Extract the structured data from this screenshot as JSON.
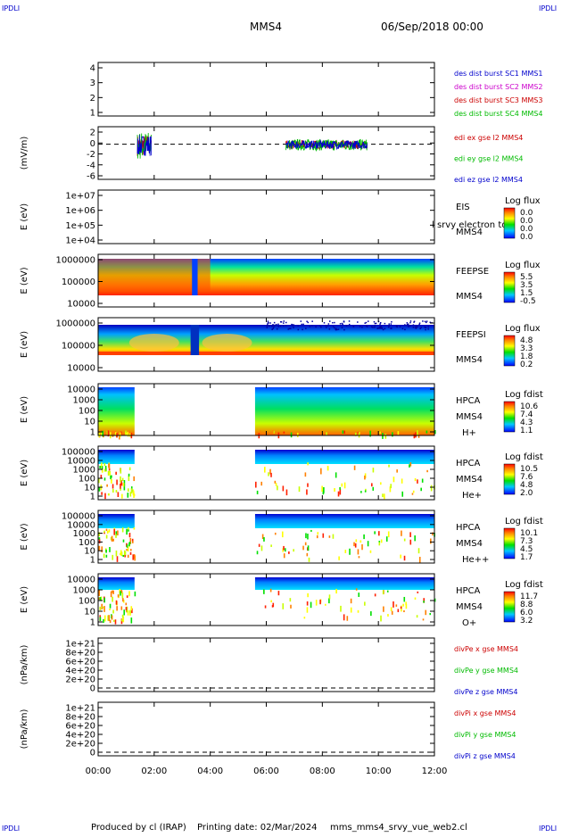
{
  "header": {
    "corner_tl": "IPDLI",
    "corner_tr": "IPDLI",
    "corner_bl": "IPDLI",
    "corner_br": "IPDLI",
    "spacecraft": "MMS4",
    "date_time": "06/Sep/2018 00:00"
  },
  "footer": {
    "produced_by": "Produced by cl (IRAP)",
    "printing_date": "Printing date: 02/Mar/2024",
    "script_name": "mms_mms4_srvy_vue_web2.cl"
  },
  "colors": {
    "mms1": "#0000cc",
    "mms2": "#cc00cc",
    "mms3": "#cc0000",
    "mms4": "#00bb00",
    "x": "#cc0000",
    "y": "#00bb00",
    "z": "#0000cc"
  },
  "chart_data": [
    {
      "type": "line",
      "panel": "des-dist-burst",
      "ylabel": "",
      "ylim": [
        0.5,
        4.5
      ],
      "yticks": [
        "4",
        "3",
        "2",
        "1"
      ],
      "legend": [
        {
          "label": "des dist burst SC1 MMS1",
          "color": "#0000cc"
        },
        {
          "label": "des dist burst SC2 MMS2",
          "color": "#cc00cc"
        },
        {
          "label": "des dist burst SC3 MMS3",
          "color": "#cc0000"
        },
        {
          "label": "des dist burst SC4 MMS4",
          "color": "#00bb00"
        }
      ],
      "series": []
    },
    {
      "type": "line",
      "panel": "edi-e-field",
      "ylabel": "(mV/m)",
      "ylim": [
        -6,
        3
      ],
      "yticks": [
        "2",
        "0",
        "-2",
        "-4",
        "-6"
      ],
      "dashed_zero": true,
      "legend": [
        {
          "label": "edi ex gse l2 MMS4",
          "color": "#cc0000"
        },
        {
          "label": "edi ey gse l2 MMS4",
          "color": "#00bb00"
        },
        {
          "label": "edi ez gse l2 MMS4",
          "color": "#0000cc"
        }
      ],
      "activity_hours": [
        [
          1.4,
          1.9
        ],
        [
          6.7,
          9.6
        ]
      ]
    },
    {
      "type": "heatmap",
      "panel": "eis",
      "ylabel": "E (eV)",
      "yticks": [
        "1e+07",
        "1e+06",
        "1e+05",
        "1e+04"
      ],
      "side_labels": [
        "EIS",
        "MMS4"
      ],
      "overlay_text": "l srvy electron to",
      "colorbar_title": "Log flux",
      "colorbar_ticks": [
        "0.0",
        "0.0",
        "0.0",
        "0.0"
      ]
    },
    {
      "type": "heatmap",
      "panel": "feeps-e",
      "ylabel": "E (eV)",
      "yticks": [
        "1000000",
        "100000",
        "10000"
      ],
      "side_labels": [
        "FEEPSE",
        "MMS4"
      ],
      "colorbar_title": "Log flux",
      "colorbar_ticks": [
        "5.5",
        "3.5",
        "1.5",
        "-0.5"
      ],
      "gap_hours": [
        3.35,
        3.55
      ]
    },
    {
      "type": "heatmap",
      "panel": "feeps-i",
      "ylabel": "E (eV)",
      "yticks": [
        "1000000",
        "100000",
        "10000"
      ],
      "side_labels": [
        "FEEPSI",
        "MMS4"
      ],
      "colorbar_title": "Log flux",
      "colorbar_ticks": [
        "4.8",
        "3.3",
        "1.8",
        "0.2"
      ],
      "gap_hours": [
        3.3,
        3.6
      ]
    },
    {
      "type": "heatmap",
      "panel": "hpca-h",
      "ylabel": "E (eV)",
      "yticks": [
        "10000",
        "1000",
        "100",
        "10",
        "1"
      ],
      "side_labels": [
        "HPCA",
        "MMS4",
        "H+"
      ],
      "colorbar_title": "Log fdist",
      "colorbar_ticks": [
        "10.6",
        "7.4",
        "4.3",
        "1.1"
      ],
      "data_hours": [
        [
          0.0,
          1.3
        ],
        [
          5.6,
          12.0
        ]
      ]
    },
    {
      "type": "heatmap",
      "panel": "hpca-he",
      "ylabel": "E (eV)",
      "yticks": [
        "100000",
        "10000",
        "1000",
        "100",
        "10",
        "1"
      ],
      "side_labels": [
        "HPCA",
        "MMS4",
        "He+"
      ],
      "colorbar_title": "Log fdist",
      "colorbar_ticks": [
        "10.5",
        "7.6",
        "4.8",
        "2.0"
      ],
      "data_hours": [
        [
          0.0,
          1.3
        ],
        [
          5.6,
          12.0
        ]
      ]
    },
    {
      "type": "heatmap",
      "panel": "hpca-he2",
      "ylabel": "E (eV)",
      "yticks": [
        "100000",
        "10000",
        "1000",
        "100",
        "10",
        "1"
      ],
      "side_labels": [
        "HPCA",
        "MMS4",
        "He++"
      ],
      "colorbar_title": "Log fdist",
      "colorbar_ticks": [
        "10.1",
        "7.3",
        "4.5",
        "1.7"
      ],
      "data_hours": [
        [
          0.0,
          1.3
        ],
        [
          5.6,
          12.0
        ]
      ]
    },
    {
      "type": "heatmap",
      "panel": "hpca-o",
      "ylabel": "E (eV)",
      "yticks": [
        "10000",
        "1000",
        "100",
        "10",
        "1"
      ],
      "side_labels": [
        "HPCA",
        "MMS4",
        "O+"
      ],
      "colorbar_title": "Log fdist",
      "colorbar_ticks": [
        "11.7",
        "8.8",
        "6.0",
        "3.2"
      ],
      "data_hours": [
        [
          0.0,
          1.3
        ],
        [
          5.6,
          12.0
        ]
      ]
    },
    {
      "type": "line",
      "panel": "divpe",
      "ylabel": "(nPa/km)",
      "yticks": [
        "1e+21",
        "8e+20",
        "6e+20",
        "4e+20",
        "2e+20",
        "0"
      ],
      "dashed_zero": true,
      "legend": [
        {
          "label": "divPe x gse MMS4",
          "color": "#cc0000"
        },
        {
          "label": "divPe y gse MMS4",
          "color": "#00bb00"
        },
        {
          "label": "divPe z gse MMS4",
          "color": "#0000cc"
        }
      ],
      "series": []
    },
    {
      "type": "line",
      "panel": "divpi",
      "ylabel": "(nPa/km)",
      "yticks": [
        "1e+21",
        "8e+20",
        "6e+20",
        "4e+20",
        "2e+20",
        "0"
      ],
      "dashed_zero": true,
      "legend": [
        {
          "label": "divPi x gse MMS4",
          "color": "#cc0000"
        },
        {
          "label": "divPi y gse MMS4",
          "color": "#00bb00"
        },
        {
          "label": "divPi z gse MMS4",
          "color": "#0000cc"
        }
      ],
      "series": []
    }
  ],
  "x_axis": {
    "xlim_hours": [
      0,
      12
    ],
    "tick_labels": [
      "00:00",
      "02:00",
      "04:00",
      "06:00",
      "08:00",
      "10:00",
      "12:00"
    ]
  }
}
